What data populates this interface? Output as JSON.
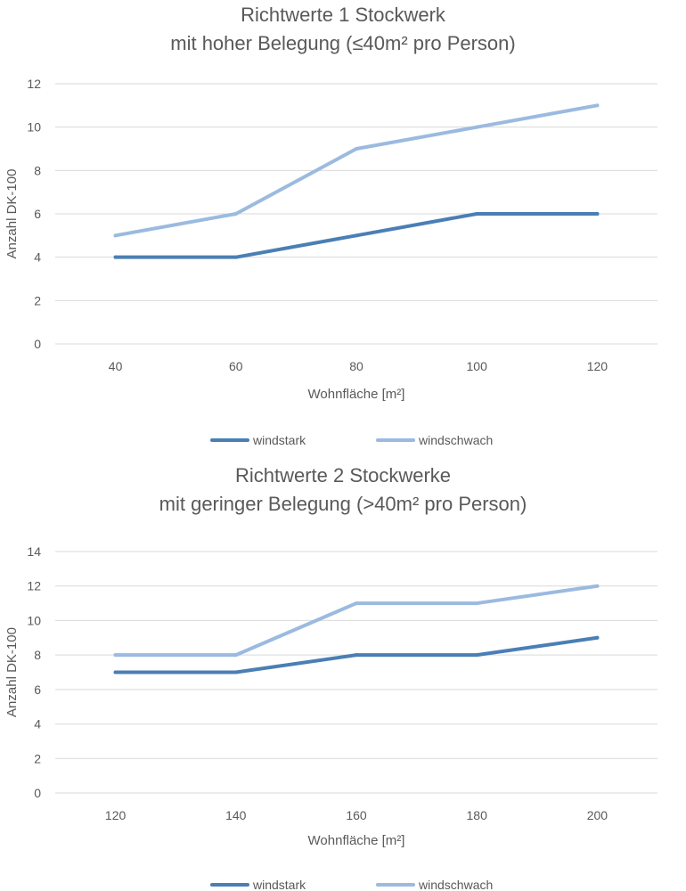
{
  "chart_data": [
    {
      "type": "line",
      "title": [
        "Richtwerte 1 Stockwerk",
        "mit hoher Belegung (≤40m² pro Person)"
      ],
      "xlabel": "Wohnfläche [m²]",
      "ylabel": "Anzahl DK-100",
      "categories": [
        "40",
        "60",
        "80",
        "100",
        "120"
      ],
      "ylim": [
        0,
        12
      ],
      "yticks": [
        0,
        2,
        4,
        6,
        8,
        10,
        12
      ],
      "grid": true,
      "legend_position": "bottom",
      "series": [
        {
          "name": "windstark",
          "color": "#4a7fb5",
          "values": [
            4,
            4,
            5,
            6,
            6
          ]
        },
        {
          "name": "windschwach",
          "color": "#9bbae0",
          "values": [
            5,
            6,
            9,
            10,
            11
          ]
        }
      ]
    },
    {
      "type": "line",
      "title": [
        "Richtwerte 2 Stockwerke",
        "mit geringer Belegung (>40m² pro Person)"
      ],
      "xlabel": "Wohnfläche [m²]",
      "ylabel": "Anzahl DK-100",
      "categories": [
        "120",
        "140",
        "160",
        "180",
        "200"
      ],
      "ylim": [
        0,
        14
      ],
      "yticks": [
        0,
        2,
        4,
        6,
        8,
        10,
        12,
        14
      ],
      "grid": true,
      "legend_position": "bottom",
      "series": [
        {
          "name": "windstark",
          "color": "#4a7fb5",
          "values": [
            7,
            7,
            8,
            8,
            9
          ]
        },
        {
          "name": "windschwach",
          "color": "#9bbae0",
          "values": [
            8,
            8,
            11,
            11,
            12
          ]
        }
      ]
    }
  ]
}
